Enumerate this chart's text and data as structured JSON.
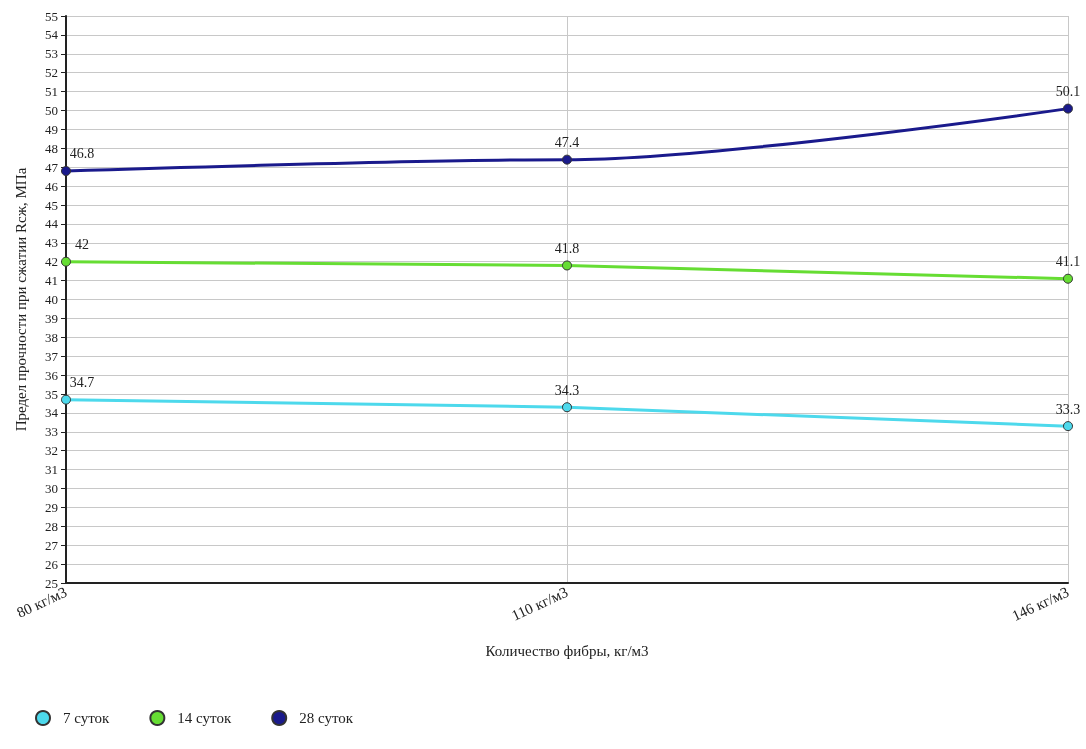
{
  "chart_data": {
    "type": "line",
    "xlabel": "Количество фибры, кг/м3",
    "ylabel": "Предел прочности при сжатии Rсж, МПа",
    "categories": [
      "80 кг/м3",
      "110 кг/м3",
      "146 кг/м3"
    ],
    "series": [
      {
        "name": "7 суток",
        "color": "#4dd9ec",
        "values": [
          34.7,
          34.3,
          33.3
        ]
      },
      {
        "name": "14 суток",
        "color": "#66dd33",
        "values": [
          42,
          41.8,
          41.1
        ]
      },
      {
        "name": "28 суток",
        "color": "#1a1a8c",
        "values": [
          46.8,
          47.4,
          50.1
        ]
      }
    ],
    "ylim": [
      25,
      55
    ],
    "yticks": [
      25,
      26,
      27,
      28,
      29,
      30,
      31,
      32,
      33,
      34,
      35,
      36,
      37,
      38,
      39,
      40,
      41,
      42,
      43,
      44,
      45,
      46,
      47,
      48,
      49,
      50,
      51,
      52,
      53,
      54,
      55
    ],
    "grid": true,
    "legend": "bottom left",
    "marker": "circle",
    "line_style": "solid",
    "data_labels": true
  }
}
